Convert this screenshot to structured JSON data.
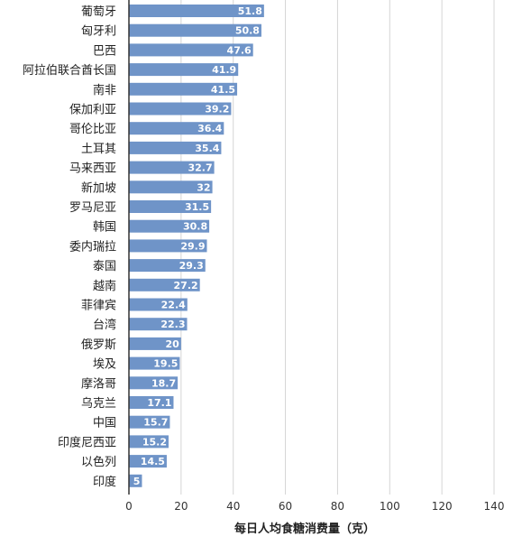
{
  "chart_data": {
    "type": "bar",
    "orientation": "horizontal",
    "title": "",
    "xlabel": "每日人均食糖消费量（克）",
    "ylabel": "",
    "categories": [
      "葡萄牙",
      "匈牙利",
      "巴西",
      "阿拉伯联合酋长国",
      "南非",
      "保加利亚",
      "哥伦比亚",
      "土耳其",
      "马来西亚",
      "新加坡",
      "罗马尼亚",
      "韩国",
      "委内瑞拉",
      "泰国",
      "越南",
      "菲律宾",
      "台湾",
      "俄罗斯",
      "埃及",
      "摩洛哥",
      "乌克兰",
      "中国",
      "印度尼西亚",
      "以色列",
      "印度"
    ],
    "values": [
      51.8,
      50.8,
      47.6,
      41.9,
      41.5,
      39.2,
      36.4,
      35.4,
      32.7,
      32,
      31.5,
      30.8,
      29.9,
      29.3,
      27.2,
      22.4,
      22.3,
      20,
      19.5,
      18.7,
      17.1,
      15.7,
      15.2,
      14.5,
      5
    ],
    "value_labels": [
      "51.8",
      "50.8",
      "47.6",
      "41.9",
      "41.5",
      "39.2",
      "36.4",
      "35.4",
      "32.7",
      "32",
      "31.5",
      "30.8",
      "29.9",
      "29.3",
      "27.2",
      "22.4",
      "22.3",
      "20",
      "19.5",
      "18.7",
      "17.1",
      "15.7",
      "15.2",
      "14.5",
      "5"
    ],
    "xlim": [
      0,
      140
    ],
    "ticks": [
      "0",
      "20",
      "40",
      "60",
      "80",
      "100",
      "120",
      "140"
    ],
    "grid": "vertical",
    "legend": "none",
    "colors": {
      "bar": "#6f94c8",
      "grid": "#d4d4d4",
      "axis": "#333333"
    }
  }
}
